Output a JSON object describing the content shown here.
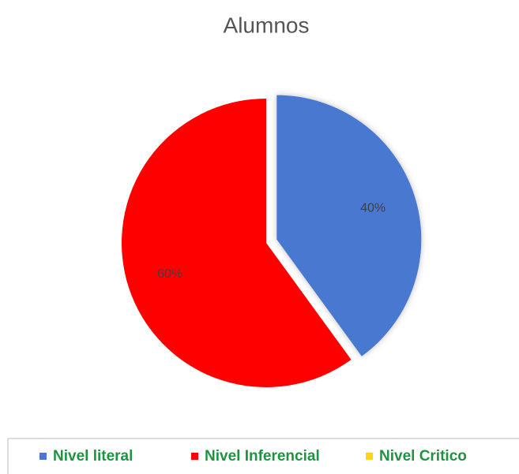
{
  "chart_data": {
    "type": "pie",
    "title": "Alumnos",
    "categories": [
      "Nivel literal",
      "Nivel Inferencial",
      "Nivel Critico"
    ],
    "values": [
      40,
      60,
      0
    ],
    "value_labels": [
      "40%",
      "60%",
      null
    ],
    "colors": [
      "#4a78d0",
      "#ff0000",
      "#ffd21f"
    ],
    "legend": "bottom"
  }
}
